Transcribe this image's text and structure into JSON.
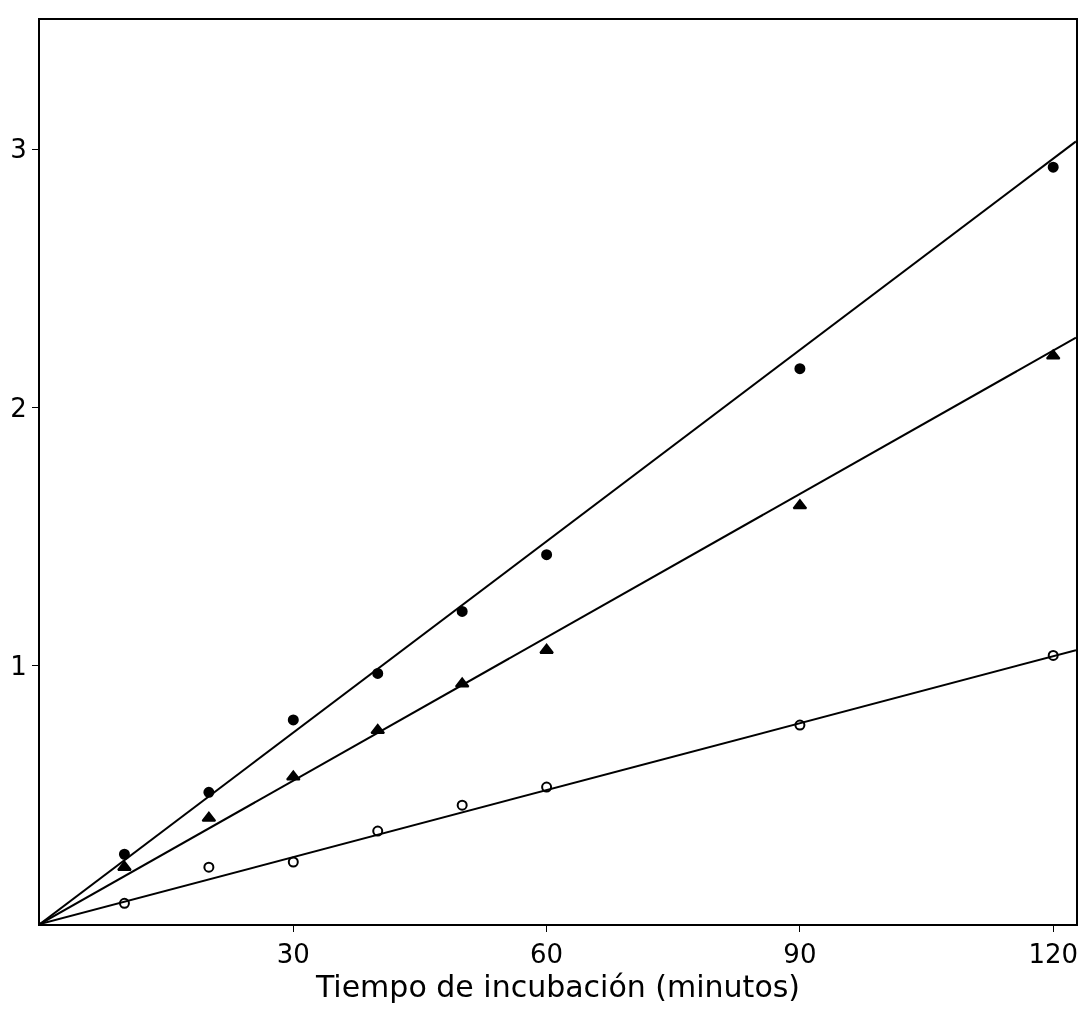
{
  "chart_data": {
    "type": "scatter",
    "xlabel": "Tiempo de incubación (minutos)",
    "xlim": [
      0,
      122.7
    ],
    "ylim": [
      0,
      3.5
    ],
    "xticks": [
      30,
      60,
      90,
      120
    ],
    "yticks": [
      1,
      2,
      3
    ],
    "series": [
      {
        "color": "#000000",
        "marker": "circle",
        "x": [
          10,
          20,
          30,
          40,
          50,
          60,
          90,
          120
        ],
        "values": [
          0.27,
          0.51,
          0.79,
          0.97,
          1.21,
          1.43,
          2.15,
          2.93
        ]
      },
      {
        "color": "#000000",
        "marker": "triangle",
        "x": [
          10,
          20,
          30,
          40,
          50,
          60,
          90,
          120
        ],
        "values": [
          0.22,
          0.41,
          0.57,
          0.75,
          0.93,
          1.06,
          1.62,
          2.2
        ]
      },
      {
        "color": "#000000",
        "marker": "circle-open",
        "x": [
          10,
          20,
          30,
          40,
          50,
          60,
          90,
          120
        ],
        "values": [
          0.08,
          0.22,
          0.24,
          0.36,
          0.46,
          0.53,
          0.77,
          1.04
        ]
      },
      {
        "type": "line",
        "color": "#000000",
        "marker": "none",
        "line_style": "solid",
        "x": [
          0,
          122.7
        ],
        "values": [
          0,
          3.03
        ]
      },
      {
        "type": "line",
        "color": "#000000",
        "marker": "none",
        "line_style": "solid",
        "x": [
          0,
          122.7
        ],
        "values": [
          0,
          2.27
        ]
      },
      {
        "type": "line",
        "color": "#000000",
        "marker": "none",
        "line_style": "solid",
        "x": [
          0,
          122.7
        ],
        "values": [
          0,
          1.06
        ]
      }
    ]
  }
}
